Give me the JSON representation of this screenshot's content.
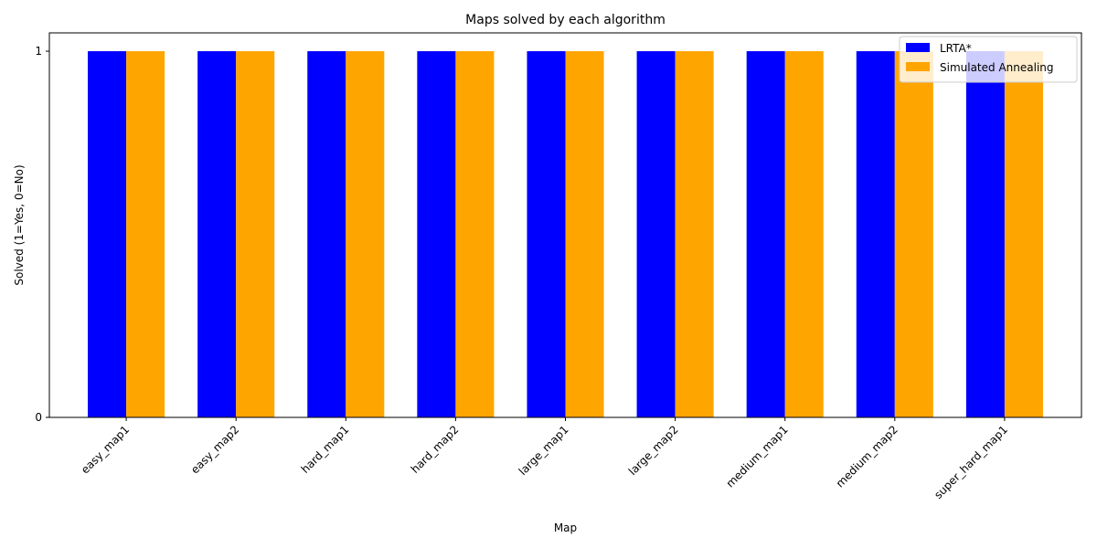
{
  "chart_data": {
    "type": "bar",
    "title": "Maps solved by each algorithm",
    "xlabel": "Map",
    "ylabel": "Solved (1=Yes, 0=No)",
    "categories": [
      "easy_map1",
      "easy_map2",
      "hard_map1",
      "hard_map2",
      "large_map1",
      "large_map2",
      "medium_map1",
      "medium_map2",
      "super_hard_map1"
    ],
    "series": [
      {
        "name": "LRTA*",
        "color": "#0000ff",
        "values": [
          1,
          1,
          1,
          1,
          1,
          1,
          1,
          1,
          1
        ]
      },
      {
        "name": "Simulated Annealing",
        "color": "#ffa500",
        "values": [
          1,
          1,
          1,
          1,
          1,
          1,
          1,
          1,
          1
        ]
      }
    ],
    "yticks": [
      "0",
      "1"
    ],
    "ylim": [
      0,
      1.05
    ],
    "grid": false,
    "legend_position": "top-right"
  }
}
